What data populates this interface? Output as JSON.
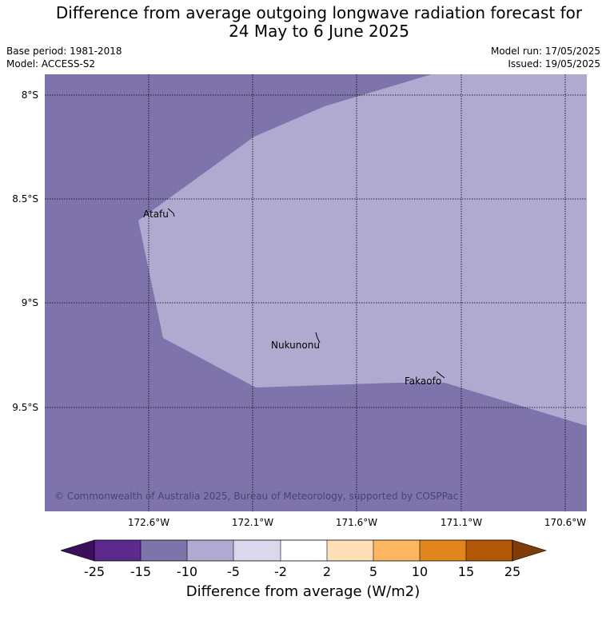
{
  "title_line1": "Difference from average outgoing longwave radiation forecast for",
  "title_line2": "24 May to 6 June 2025",
  "base_period": "Base period: 1981-2018",
  "model": "Model: ACCESS-S2",
  "model_run": "Model run: 17/05/2025",
  "issued": "Issued: 19/05/2025",
  "lat_labels": [
    "8°S",
    "8.5°S",
    "9°S",
    "9.5°S"
  ],
  "lon_labels": [
    "172.6°W",
    "172.1°W",
    "171.6°W",
    "171.1°W",
    "170.6°W"
  ],
  "places": {
    "atafu": "Atafu",
    "nukunonu": "Nukunonu",
    "fakaofo": "Fakaofo"
  },
  "copyright": "© Commonwealth of Australia 2025, Bureau of Meteorology, supported by COSPPac",
  "colorbar": {
    "title": "Difference from average (W/m2)",
    "ticks": [
      "-25",
      "-15",
      "-10",
      "-5",
      "-2",
      "2",
      "5",
      "10",
      "15",
      "25"
    ],
    "colors": {
      "under": "#3b0f5c",
      "b_m25_m15": "#5b2a8c",
      "b_m15_m10": "#7f73ab",
      "b_m10_m5": "#b0a9d0",
      "b_m5_m2": "#d9d8ec",
      "b_m2_2": "#ffffff",
      "b_2_5": "#fee0b8",
      "b_5_10": "#fdb763",
      "b_10_15": "#e2851d",
      "b_15_25": "#b35807",
      "over": "#7f3b08"
    }
  },
  "map_colors": {
    "band_m15_m10": "#7f73ab",
    "band_m10_m5": "#b0a9d0"
  }
}
